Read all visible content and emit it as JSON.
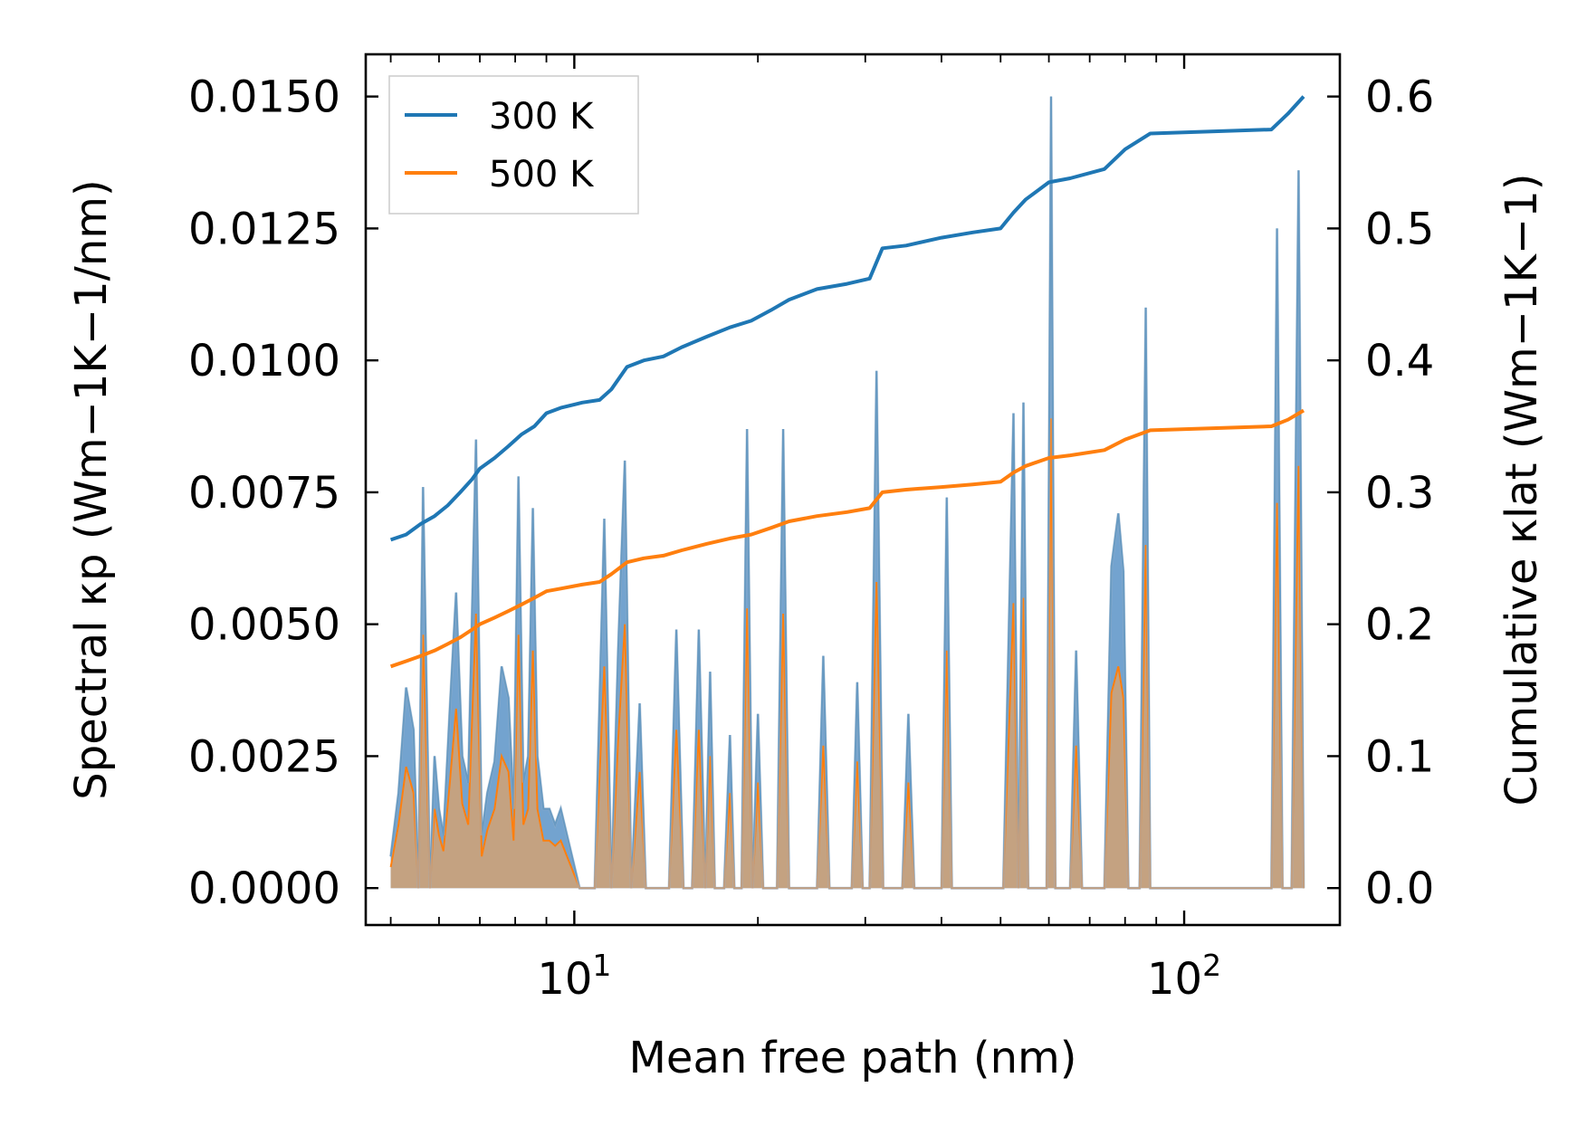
{
  "chart_data": {
    "type": "area+line",
    "x_scale": "log",
    "xlim": [
      4.55,
      180
    ],
    "xlabel": "Mean free path (nm)",
    "ylabel_left": "Spectral κp (Wm−1K−1/nm)",
    "ylabel_right": "Cumulative κlat (Wm−1K−1)",
    "ylim_left": [
      -0.0007,
      0.0158
    ],
    "ylim_right": [
      -0.028,
      0.632
    ],
    "x_tick_labels": [
      "10",
      "10"
    ],
    "x_tick_exponents": [
      "1",
      "2"
    ],
    "y_left_ticks": [
      "0.0000",
      "0.0025",
      "0.0050",
      "0.0075",
      "0.0100",
      "0.0125",
      "0.0150"
    ],
    "y_right_ticks": [
      "0.0",
      "0.1",
      "0.2",
      "0.3",
      "0.4",
      "0.5",
      "0.6"
    ],
    "legend": {
      "position": "top-left",
      "entries": [
        "300 K",
        "500 K"
      ]
    },
    "colors": {
      "series_300K": "#1f77b4",
      "series_500K": "#ff7f0e",
      "fill_300K": "#5a93c7",
      "fill_500K": "#c8a27c",
      "outline": "#9ab3cc"
    },
    "spectral_300K": [
      [
        5.0,
        0.0006
      ],
      [
        5.15,
        0.0018
      ],
      [
        5.3,
        0.0038
      ],
      [
        5.45,
        0.003
      ],
      [
        5.55,
        0.0
      ],
      [
        5.65,
        0.0076
      ],
      [
        5.8,
        0.0
      ],
      [
        5.9,
        0.0025
      ],
      [
        6.0,
        0.0015
      ],
      [
        6.1,
        0.001
      ],
      [
        6.25,
        0.0034
      ],
      [
        6.4,
        0.0056
      ],
      [
        6.55,
        0.0025
      ],
      [
        6.7,
        0.002
      ],
      [
        6.9,
        0.0085
      ],
      [
        7.05,
        0.001
      ],
      [
        7.2,
        0.0018
      ],
      [
        7.4,
        0.0024
      ],
      [
        7.6,
        0.0042
      ],
      [
        7.8,
        0.0036
      ],
      [
        7.95,
        0.0015
      ],
      [
        8.1,
        0.0078
      ],
      [
        8.25,
        0.002
      ],
      [
        8.4,
        0.0025
      ],
      [
        8.55,
        0.0072
      ],
      [
        8.7,
        0.0025
      ],
      [
        8.9,
        0.0015
      ],
      [
        9.1,
        0.0015
      ],
      [
        9.3,
        0.0012
      ],
      [
        9.5,
        0.0015
      ],
      [
        10.2,
        0.0
      ],
      [
        10.8,
        0.0
      ],
      [
        11.2,
        0.007
      ],
      [
        11.5,
        0.0
      ],
      [
        11.8,
        0.0045
      ],
      [
        12.1,
        0.0081
      ],
      [
        12.4,
        0.0
      ],
      [
        12.8,
        0.0035
      ],
      [
        13.1,
        0.0
      ],
      [
        14.3,
        0.0
      ],
      [
        14.7,
        0.0049
      ],
      [
        15.1,
        0.0
      ],
      [
        15.6,
        0.0
      ],
      [
        16.0,
        0.0049
      ],
      [
        16.4,
        0.0
      ],
      [
        16.7,
        0.0041
      ],
      [
        17.0,
        0.0
      ],
      [
        17.6,
        0.0
      ],
      [
        18.0,
        0.0029
      ],
      [
        18.3,
        0.0
      ],
      [
        18.8,
        0.0
      ],
      [
        19.2,
        0.0087
      ],
      [
        19.6,
        0.0
      ],
      [
        20.0,
        0.0033
      ],
      [
        20.4,
        0.0
      ],
      [
        21.5,
        0.0
      ],
      [
        22.0,
        0.0087
      ],
      [
        22.5,
        0.0
      ],
      [
        25.0,
        0.0
      ],
      [
        25.6,
        0.0044
      ],
      [
        26.2,
        0.0
      ],
      [
        28.5,
        0.0
      ],
      [
        29.1,
        0.0039
      ],
      [
        29.7,
        0.0
      ],
      [
        30.5,
        0.0
      ],
      [
        31.3,
        0.0098
      ],
      [
        32.1,
        0.0
      ],
      [
        34.5,
        0.0
      ],
      [
        35.3,
        0.0033
      ],
      [
        36.1,
        0.0
      ],
      [
        40.0,
        0.0
      ],
      [
        40.8,
        0.0074
      ],
      [
        41.6,
        0.0
      ],
      [
        50.5,
        0.0
      ],
      [
        52.5,
        0.009
      ],
      [
        53.5,
        0.0
      ],
      [
        54.5,
        0.0092
      ],
      [
        55.5,
        0.0
      ],
      [
        59.5,
        0.0
      ],
      [
        60.5,
        0.015
      ],
      [
        61.5,
        0.0
      ],
      [
        65.0,
        0.0
      ],
      [
        66.5,
        0.0045
      ],
      [
        68.0,
        0.0
      ],
      [
        74.0,
        0.0
      ],
      [
        76.0,
        0.0061
      ],
      [
        78.0,
        0.0071
      ],
      [
        79.5,
        0.006
      ],
      [
        81.0,
        0.0
      ],
      [
        84.5,
        0.0
      ],
      [
        86.5,
        0.011
      ],
      [
        88.0,
        0.0
      ],
      [
        139.0,
        0.0
      ],
      [
        142.0,
        0.0125
      ],
      [
        145.0,
        0.0
      ],
      [
        150.0,
        0.0
      ],
      [
        154.0,
        0.0136
      ],
      [
        157.0,
        0.0
      ]
    ],
    "spectral_500K": [
      [
        5.0,
        0.0004
      ],
      [
        5.15,
        0.0012
      ],
      [
        5.3,
        0.0023
      ],
      [
        5.45,
        0.0018
      ],
      [
        5.55,
        0.0
      ],
      [
        5.65,
        0.0048
      ],
      [
        5.8,
        0.0
      ],
      [
        5.9,
        0.0015
      ],
      [
        6.0,
        0.001
      ],
      [
        6.1,
        0.0007
      ],
      [
        6.25,
        0.002
      ],
      [
        6.4,
        0.0034
      ],
      [
        6.55,
        0.0016
      ],
      [
        6.7,
        0.0012
      ],
      [
        6.9,
        0.0052
      ],
      [
        7.05,
        0.0006
      ],
      [
        7.2,
        0.0011
      ],
      [
        7.4,
        0.0015
      ],
      [
        7.6,
        0.0025
      ],
      [
        7.8,
        0.0022
      ],
      [
        7.95,
        0.0009
      ],
      [
        8.1,
        0.0048
      ],
      [
        8.25,
        0.0012
      ],
      [
        8.4,
        0.0015
      ],
      [
        8.55,
        0.0045
      ],
      [
        8.7,
        0.0015
      ],
      [
        8.9,
        0.0009
      ],
      [
        9.1,
        0.0009
      ],
      [
        9.3,
        0.0008
      ],
      [
        9.5,
        0.0009
      ],
      [
        10.2,
        0.0
      ],
      [
        10.8,
        0.0
      ],
      [
        11.2,
        0.0042
      ],
      [
        11.5,
        0.0
      ],
      [
        11.8,
        0.0028
      ],
      [
        12.1,
        0.005
      ],
      [
        12.4,
        0.0
      ],
      [
        12.8,
        0.0022
      ],
      [
        13.1,
        0.0
      ],
      [
        14.3,
        0.0
      ],
      [
        14.7,
        0.003
      ],
      [
        15.1,
        0.0
      ],
      [
        15.6,
        0.0
      ],
      [
        16.0,
        0.003
      ],
      [
        16.4,
        0.0
      ],
      [
        16.7,
        0.0025
      ],
      [
        17.0,
        0.0
      ],
      [
        17.6,
        0.0
      ],
      [
        18.0,
        0.0018
      ],
      [
        18.3,
        0.0
      ],
      [
        18.8,
        0.0
      ],
      [
        19.2,
        0.0053
      ],
      [
        19.6,
        0.0
      ],
      [
        20.0,
        0.002
      ],
      [
        20.4,
        0.0
      ],
      [
        21.5,
        0.0
      ],
      [
        22.0,
        0.0052
      ],
      [
        22.5,
        0.0
      ],
      [
        25.0,
        0.0
      ],
      [
        25.6,
        0.0027
      ],
      [
        26.2,
        0.0
      ],
      [
        28.5,
        0.0
      ],
      [
        29.1,
        0.0024
      ],
      [
        29.7,
        0.0
      ],
      [
        30.5,
        0.0
      ],
      [
        31.3,
        0.0058
      ],
      [
        32.1,
        0.0
      ],
      [
        34.5,
        0.0
      ],
      [
        35.3,
        0.002
      ],
      [
        36.1,
        0.0
      ],
      [
        40.0,
        0.0
      ],
      [
        40.8,
        0.0045
      ],
      [
        41.6,
        0.0
      ],
      [
        50.5,
        0.0
      ],
      [
        52.5,
        0.0054
      ],
      [
        53.5,
        0.0
      ],
      [
        54.5,
        0.0055
      ],
      [
        55.5,
        0.0
      ],
      [
        59.5,
        0.0
      ],
      [
        60.5,
        0.0089
      ],
      [
        61.5,
        0.0
      ],
      [
        65.0,
        0.0
      ],
      [
        66.5,
        0.0027
      ],
      [
        68.0,
        0.0
      ],
      [
        74.0,
        0.0
      ],
      [
        76.0,
        0.0037
      ],
      [
        78.0,
        0.0042
      ],
      [
        79.5,
        0.0036
      ],
      [
        81.0,
        0.0
      ],
      [
        84.5,
        0.0
      ],
      [
        86.5,
        0.0065
      ],
      [
        88.0,
        0.0
      ],
      [
        139.0,
        0.0
      ],
      [
        142.0,
        0.0073
      ],
      [
        145.0,
        0.0
      ],
      [
        150.0,
        0.0
      ],
      [
        154.0,
        0.008
      ],
      [
        157.0,
        0.0
      ]
    ],
    "cumulative_300K": [
      [
        5.0,
        0.264
      ],
      [
        5.3,
        0.268
      ],
      [
        5.6,
        0.276
      ],
      [
        5.9,
        0.282
      ],
      [
        6.2,
        0.29
      ],
      [
        6.5,
        0.3
      ],
      [
        6.8,
        0.31
      ],
      [
        7.0,
        0.318
      ],
      [
        7.4,
        0.326
      ],
      [
        7.8,
        0.335
      ],
      [
        8.2,
        0.344
      ],
      [
        8.6,
        0.35
      ],
      [
        9.0,
        0.36
      ],
      [
        9.5,
        0.364
      ],
      [
        10.3,
        0.368
      ],
      [
        11.0,
        0.37
      ],
      [
        11.5,
        0.378
      ],
      [
        12.2,
        0.395
      ],
      [
        13.0,
        0.4
      ],
      [
        14.0,
        0.403
      ],
      [
        15.0,
        0.41
      ],
      [
        16.5,
        0.418
      ],
      [
        18.0,
        0.425
      ],
      [
        19.5,
        0.43
      ],
      [
        21.0,
        0.438
      ],
      [
        22.5,
        0.446
      ],
      [
        25.0,
        0.454
      ],
      [
        28.0,
        0.458
      ],
      [
        30.5,
        0.462
      ],
      [
        32.0,
        0.485
      ],
      [
        35.0,
        0.487
      ],
      [
        40.0,
        0.493
      ],
      [
        45.0,
        0.497
      ],
      [
        50.0,
        0.5
      ],
      [
        52.5,
        0.512
      ],
      [
        55.0,
        0.522
      ],
      [
        60.0,
        0.535
      ],
      [
        65.0,
        0.538
      ],
      [
        74.0,
        0.545
      ],
      [
        80.0,
        0.56
      ],
      [
        88.0,
        0.572
      ],
      [
        139.0,
        0.575
      ],
      [
        148.0,
        0.587
      ],
      [
        157.0,
        0.6
      ]
    ],
    "cumulative_500K": [
      [
        5.0,
        0.168
      ],
      [
        5.3,
        0.172
      ],
      [
        5.6,
        0.176
      ],
      [
        5.9,
        0.18
      ],
      [
        6.2,
        0.185
      ],
      [
        6.5,
        0.19
      ],
      [
        6.8,
        0.196
      ],
      [
        7.0,
        0.2
      ],
      [
        7.4,
        0.205
      ],
      [
        7.8,
        0.21
      ],
      [
        8.2,
        0.215
      ],
      [
        8.6,
        0.22
      ],
      [
        9.0,
        0.225
      ],
      [
        9.5,
        0.227
      ],
      [
        10.3,
        0.23
      ],
      [
        11.0,
        0.232
      ],
      [
        11.5,
        0.238
      ],
      [
        12.2,
        0.247
      ],
      [
        13.0,
        0.25
      ],
      [
        14.0,
        0.252
      ],
      [
        15.0,
        0.256
      ],
      [
        16.5,
        0.261
      ],
      [
        18.0,
        0.265
      ],
      [
        19.5,
        0.268
      ],
      [
        21.0,
        0.273
      ],
      [
        22.5,
        0.278
      ],
      [
        25.0,
        0.282
      ],
      [
        28.0,
        0.285
      ],
      [
        30.5,
        0.288
      ],
      [
        32.0,
        0.3
      ],
      [
        35.0,
        0.302
      ],
      [
        40.0,
        0.304
      ],
      [
        45.0,
        0.306
      ],
      [
        50.0,
        0.308
      ],
      [
        52.5,
        0.315
      ],
      [
        55.0,
        0.32
      ],
      [
        60.0,
        0.326
      ],
      [
        65.0,
        0.328
      ],
      [
        74.0,
        0.332
      ],
      [
        80.0,
        0.34
      ],
      [
        88.0,
        0.347
      ],
      [
        139.0,
        0.35
      ],
      [
        148.0,
        0.355
      ],
      [
        157.0,
        0.362
      ]
    ]
  }
}
